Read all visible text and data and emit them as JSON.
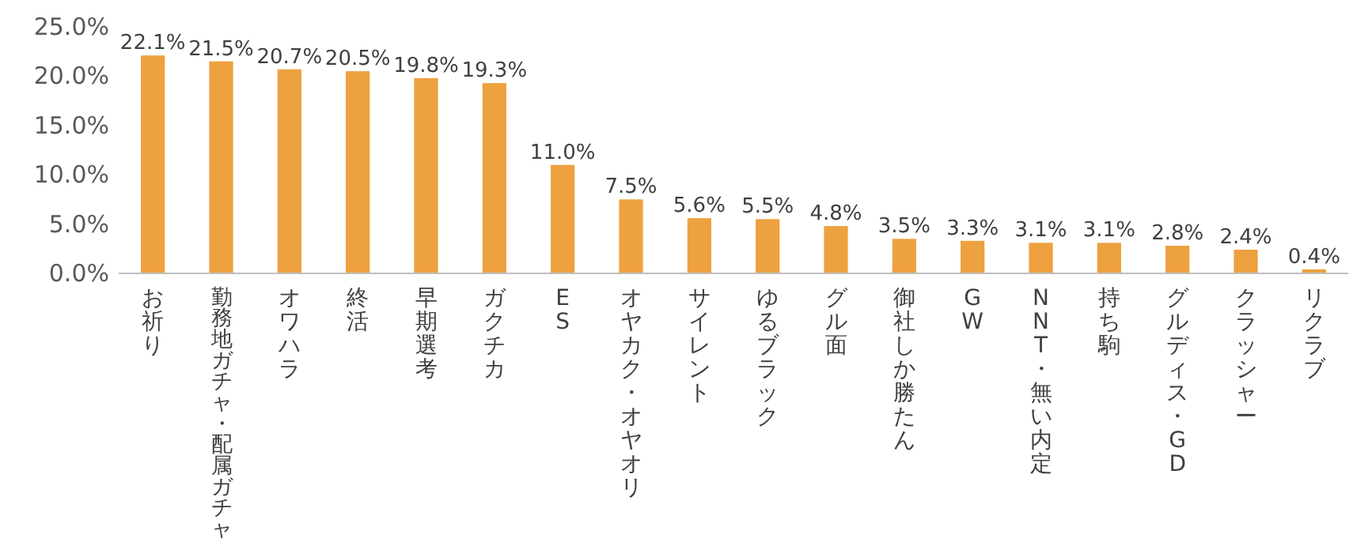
{
  "chart_data": {
    "type": "bar",
    "categories": [
      "お祈り",
      "勤務地ガチャ・配属ガチャ",
      "オワハラ",
      "終活",
      "早期選考",
      "ガクチカ",
      "ES",
      "オヤカク・オヤオリ",
      "サイレント",
      "ゆるブラック",
      "グル面",
      "御社しか勝たん",
      "GW",
      "NNT・無い内定",
      "持ち駒",
      "グルディス・GD",
      "クラッシャー",
      "リクラブ"
    ],
    "values": [
      22.1,
      21.5,
      20.7,
      20.5,
      19.8,
      19.3,
      11.0,
      7.5,
      5.6,
      5.5,
      4.8,
      3.5,
      3.3,
      3.1,
      3.1,
      2.8,
      2.4,
      0.4
    ],
    "value_labels": [
      "22.1%",
      "21.5%",
      "20.7%",
      "20.5%",
      "19.8%",
      "19.3%",
      "11.0%",
      "7.5%",
      "5.6%",
      "5.5%",
      "4.8%",
      "3.5%",
      "3.3%",
      "3.1%",
      "3.1%",
      "2.8%",
      "2.4%",
      "0.4%"
    ],
    "color": "#eda13f",
    "ylim": [
      0,
      25
    ],
    "yticks": [
      {
        "value": 0,
        "label": "0.0%"
      },
      {
        "value": 5,
        "label": "5.0%"
      },
      {
        "value": 10,
        "label": "10.0%"
      },
      {
        "value": 15,
        "label": "15.0%"
      },
      {
        "value": 20,
        "label": "20.0%"
      },
      {
        "value": 25,
        "label": "25.0%"
      }
    ],
    "grid": false
  }
}
